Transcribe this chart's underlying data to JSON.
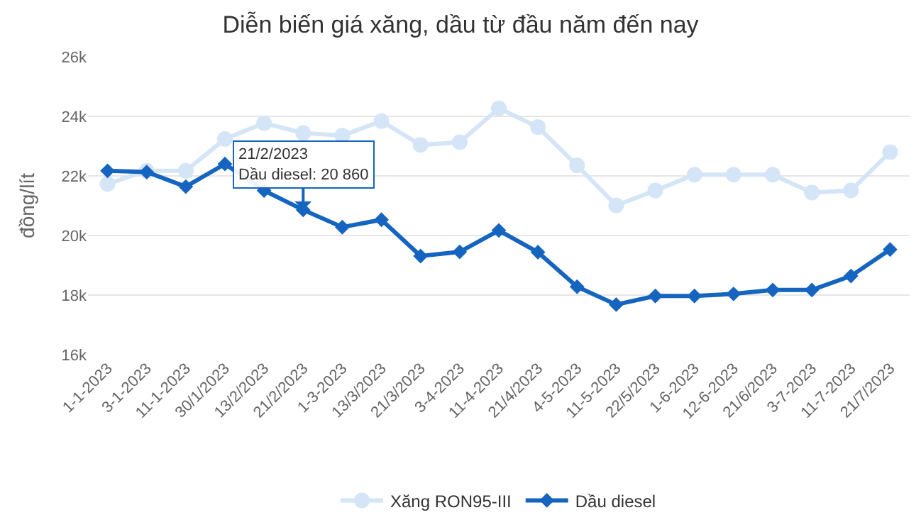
{
  "chart_data": {
    "type": "line",
    "title": "Diễn biến giá xăng, dầu từ đầu năm đến nay",
    "ylabel": "đồng/lít",
    "categories": [
      "1-1-2023",
      "3-1-2023",
      "11-1-2023",
      "30/1/2023",
      "13/2/2023",
      "21/2/2023",
      "1-3-2023",
      "13/3/2023",
      "21/3/2023",
      "3-4-2023",
      "11-4-2023",
      "21/4/2023",
      "4-5-2023",
      "11-5-2023",
      "22/5/2023",
      "1-6-2023",
      "12-6-2023",
      "21/6/2023",
      "3-7-2023",
      "11-7-2023",
      "21/7/2023"
    ],
    "series": [
      {
        "name": "Xăng RON95-III",
        "color": "#d4e5f7",
        "marker": "circle",
        "values": [
          21730,
          22170,
          22170,
          23240,
          23770,
          23440,
          23350,
          23840,
          23040,
          23130,
          24270,
          23640,
          22350,
          21010,
          21510,
          22040,
          22040,
          22040,
          21440,
          21510,
          22800
        ]
      },
      {
        "name": "Dầu diesel",
        "color": "#1565c0",
        "marker": "diamond",
        "values": [
          22170,
          22130,
          21640,
          22400,
          21510,
          20860,
          20280,
          20530,
          19310,
          19450,
          20170,
          19440,
          18280,
          17680,
          17970,
          17970,
          18040,
          18170,
          18170,
          18640,
          19530
        ]
      }
    ],
    "ylim": [
      16000,
      26000
    ],
    "yticks": [
      {
        "value": 16000,
        "label": "16k"
      },
      {
        "value": 18000,
        "label": "18k"
      },
      {
        "value": 20000,
        "label": "20k"
      },
      {
        "value": 22000,
        "label": "22k"
      },
      {
        "value": 24000,
        "label": "24k"
      },
      {
        "value": 26000,
        "label": "26k"
      }
    ],
    "grid": "y",
    "legend": "bottom",
    "line_style": "solid",
    "annotations": [
      {
        "text": "21/2/2023\nDầu diesel: 20 860",
        "x": "21/2/2023",
        "y": 20860
      }
    ]
  }
}
